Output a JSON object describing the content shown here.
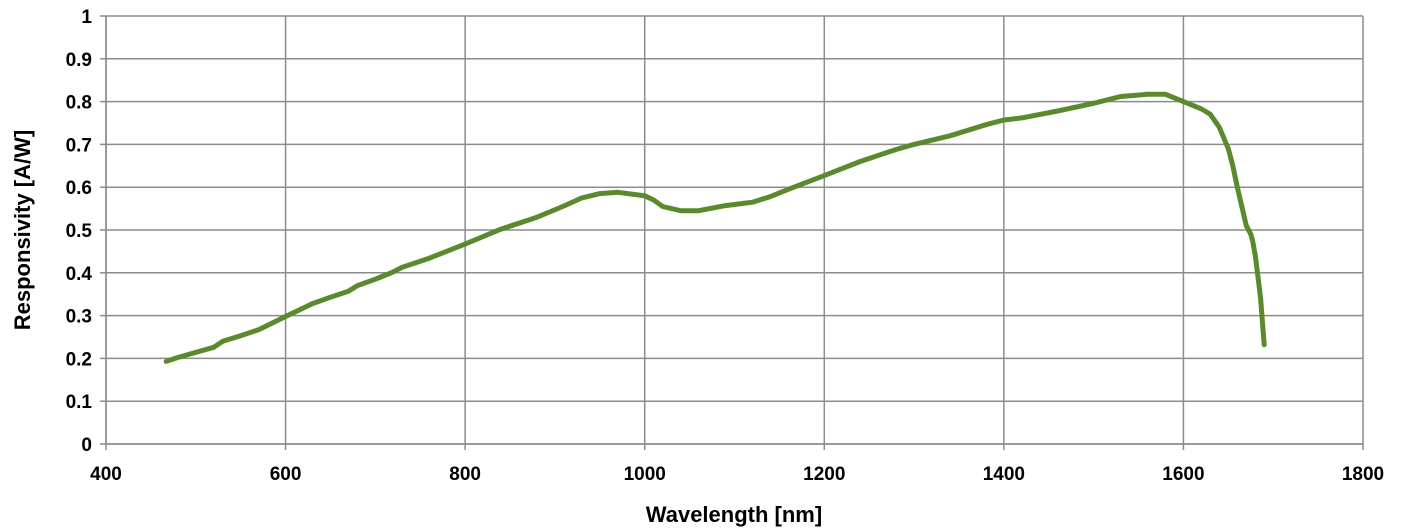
{
  "chart_data": {
    "type": "line",
    "title": "",
    "xlabel": "Wavelength [nm]",
    "ylabel": "Responsivity [A/W]",
    "xlim": [
      400,
      1800
    ],
    "ylim": [
      0,
      1
    ],
    "x_ticks": [
      400,
      600,
      800,
      1000,
      1200,
      1400,
      1600,
      1800
    ],
    "x_tick_labels": [
      "400",
      "600",
      "800",
      "1000",
      "1200",
      "1400",
      "1600",
      "1800"
    ],
    "y_ticks": [
      0,
      0.1,
      0.2,
      0.3,
      0.4,
      0.5,
      0.6,
      0.7,
      0.8,
      0.9,
      1
    ],
    "y_tick_labels": [
      "0",
      "0.1",
      "0.2",
      "0.3",
      "0.4",
      "0.5",
      "0.6",
      "0.7",
      "0.8",
      "0.9",
      "1"
    ],
    "grid": true,
    "legend": "none",
    "series": [
      {
        "color": "#5b8a2e",
        "x": [
          467,
          480,
          500,
          520,
          530,
          550,
          570,
          600,
          630,
          650,
          670,
          680,
          700,
          720,
          730,
          760,
          800,
          840,
          880,
          910,
          930,
          950,
          970,
          1000,
          1010,
          1020,
          1040,
          1060,
          1090,
          1120,
          1140,
          1160,
          1200,
          1240,
          1280,
          1300,
          1340,
          1380,
          1400,
          1420,
          1460,
          1500,
          1530,
          1560,
          1580,
          1600,
          1620,
          1630,
          1640,
          1650,
          1655,
          1660,
          1670,
          1675,
          1677,
          1680,
          1683,
          1686,
          1690
        ],
        "y": [
          0.193,
          0.202,
          0.214,
          0.226,
          0.24,
          0.253,
          0.267,
          0.298,
          0.328,
          0.343,
          0.357,
          0.37,
          0.385,
          0.402,
          0.413,
          0.434,
          0.467,
          0.502,
          0.53,
          0.556,
          0.575,
          0.585,
          0.588,
          0.58,
          0.57,
          0.555,
          0.545,
          0.545,
          0.557,
          0.565,
          0.578,
          0.595,
          0.627,
          0.66,
          0.688,
          0.7,
          0.72,
          0.746,
          0.757,
          0.762,
          0.778,
          0.796,
          0.812,
          0.817,
          0.817,
          0.8,
          0.783,
          0.77,
          0.74,
          0.69,
          0.65,
          0.6,
          0.51,
          0.49,
          0.475,
          0.44,
          0.39,
          0.34,
          0.232
        ]
      }
    ]
  }
}
